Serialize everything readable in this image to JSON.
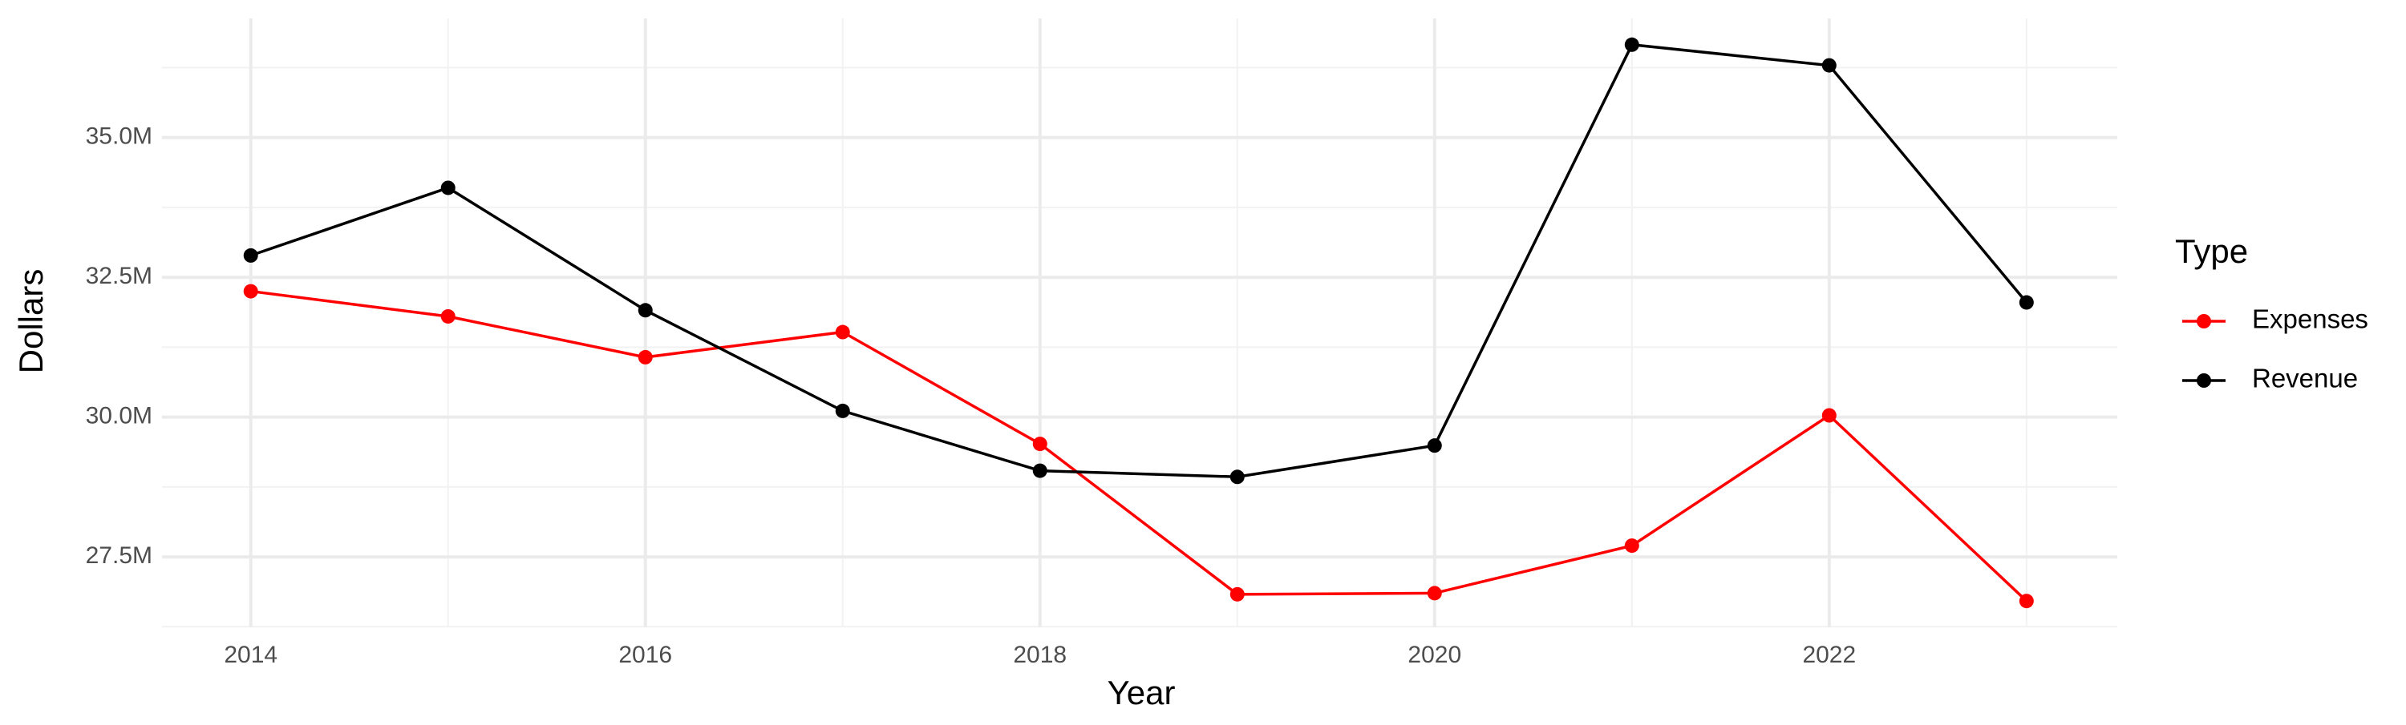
{
  "chart_data": {
    "type": "line",
    "x_label": "Year",
    "y_label": "Dollars",
    "legend_title": "Type",
    "x": [
      2014,
      2015,
      2016,
      2017,
      2018,
      2019,
      2020,
      2021,
      2022,
      2023
    ],
    "series": [
      {
        "name": "Expenses",
        "color": "#ff0000",
        "values": [
          32250000,
          31800000,
          31070000,
          31520000,
          29520000,
          26830000,
          26850000,
          27700000,
          30030000,
          26710000
        ]
      },
      {
        "name": "Revenue",
        "color": "#000000",
        "values": [
          32890000,
          34100000,
          31910000,
          30110000,
          29040000,
          28930000,
          29490000,
          36660000,
          36290000,
          32050000
        ]
      }
    ],
    "xlim": [
      2013.55,
      2023.46
    ],
    "ylim": [
      26240000,
      37130000
    ],
    "xticks": [
      2014,
      2016,
      2018,
      2020,
      2022
    ],
    "yticks": [
      {
        "value": 27500000,
        "label": "27.5M"
      },
      {
        "value": 30000000,
        "label": "30.0M"
      },
      {
        "value": 32500000,
        "label": "32.5M"
      },
      {
        "value": 35000000,
        "label": "35.0M"
      }
    ],
    "grid": true,
    "legend": "right"
  }
}
